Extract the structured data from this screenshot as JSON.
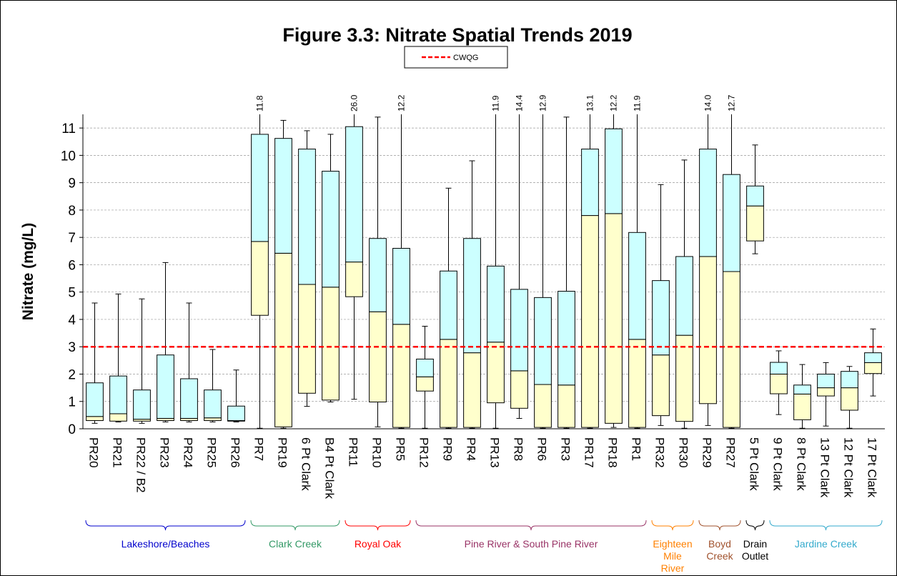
{
  "chart_data": {
    "type": "box",
    "title": "Figure 3.3: Nitrate Spatial Trends 2019",
    "y_label": "Nitrate (mg/L)",
    "ylim": [
      0,
      11.5
    ],
    "yticks": [
      0,
      1,
      2,
      3,
      4,
      5,
      6,
      7,
      8,
      9,
      10,
      11
    ],
    "grid": true,
    "reference": {
      "name": "CWQG",
      "value": 3,
      "color": "#ff0000"
    },
    "lower_color": "#ffffcc",
    "upper_color": "#ccffff",
    "categories": [
      "PR20",
      "PR21",
      "PR22 / B2",
      "PR23",
      "PR24",
      "PR25",
      "PR26",
      "PR7",
      "PR19",
      "6 Pt Clark",
      "B4 Pt Clark",
      "PR11",
      "PR10",
      "PR5",
      "PR12",
      "PR9",
      "PR4",
      "PR13",
      "PR8",
      "PR6",
      "PR3",
      "PR17",
      "PR18",
      "PR1",
      "PR32",
      "PR30",
      "PR29",
      "PR27",
      "5 Pt Clark",
      "9 Pt Clark",
      "8 Pt Clark",
      "13 Pt Clark",
      "12 Pt Clark",
      "17 Pt Clark"
    ],
    "min": [
      0.2,
      0.25,
      0.2,
      0.25,
      0.25,
      0.25,
      0.25,
      0.02,
      0.02,
      0.82,
      0.98,
      1.08,
      0.07,
      0.02,
      0.02,
      0.02,
      0.02,
      0.02,
      0.38,
      0.02,
      0.02,
      0.02,
      0.05,
      0.02,
      0.12,
      0.02,
      0.12,
      0.02,
      6.4,
      0.52,
      0.02,
      0.1,
      0.02,
      1.2
    ],
    "q1": [
      0.3,
      0.28,
      0.28,
      0.3,
      0.3,
      0.3,
      0.28,
      4.15,
      0.07,
      1.3,
      1.05,
      4.83,
      0.98,
      0.05,
      1.38,
      0.05,
      0.05,
      0.95,
      0.75,
      0.05,
      0.05,
      0.05,
      0.2,
      0.05,
      0.48,
      0.27,
      0.92,
      0.05,
      6.87,
      1.28,
      0.33,
      1.2,
      0.68,
      2.02
    ],
    "median": [
      0.45,
      0.55,
      0.35,
      0.38,
      0.38,
      0.4,
      0.3,
      6.85,
      6.42,
      5.28,
      5.18,
      6.1,
      4.28,
      3.82,
      1.9,
      3.27,
      2.78,
      3.17,
      2.12,
      1.62,
      1.6,
      7.8,
      7.87,
      3.27,
      2.7,
      3.42,
      6.3,
      5.75,
      8.15,
      2.0,
      1.27,
      1.5,
      1.5,
      2.42
    ],
    "q3": [
      1.68,
      1.93,
      1.42,
      2.7,
      1.83,
      1.42,
      0.83,
      10.77,
      10.62,
      10.23,
      9.42,
      11.05,
      6.96,
      6.6,
      2.55,
      5.77,
      6.96,
      5.95,
      5.1,
      4.8,
      5.03,
      10.23,
      10.97,
      7.18,
      5.42,
      6.3,
      10.23,
      9.3,
      8.88,
      2.43,
      1.6,
      2.0,
      2.1,
      2.78
    ],
    "max": [
      4.6,
      4.93,
      4.75,
      6.08,
      4.6,
      2.9,
      2.15,
      11.8,
      11.28,
      10.9,
      10.77,
      26.0,
      11.4,
      12.2,
      3.75,
      8.8,
      9.8,
      11.9,
      14.4,
      12.9,
      11.4,
      13.1,
      12.2,
      11.9,
      8.93,
      9.83,
      14.0,
      12.7,
      10.38,
      2.85,
      2.35,
      2.42,
      2.28,
      3.65
    ],
    "max_labels": [
      null,
      null,
      null,
      null,
      null,
      null,
      null,
      "11.8",
      null,
      null,
      null,
      "26.0",
      null,
      "12.2",
      null,
      null,
      null,
      "11.9",
      "14.4",
      "12.9",
      null,
      "13.1",
      "12.2",
      "11.9",
      null,
      null,
      "14.0",
      "12.7",
      null,
      null,
      null,
      null,
      null,
      null
    ],
    "groups": [
      {
        "lines": [
          "Lakeshore/Beaches"
        ],
        "start": 0,
        "end": 6,
        "color": "#0000cc"
      },
      {
        "lines": [
          "Clark Creek"
        ],
        "start": 7,
        "end": 10,
        "color": "#339966"
      },
      {
        "lines": [
          "Royal Oak"
        ],
        "start": 11,
        "end": 13,
        "color": "#ff0000"
      },
      {
        "lines": [
          "Pine River & South Pine River"
        ],
        "start": 14,
        "end": 23,
        "color": "#993366"
      },
      {
        "lines": [
          "Eighteen",
          "Mile",
          "River"
        ],
        "start": 24,
        "end": 25,
        "color": "#ff8000"
      },
      {
        "lines": [
          "Boyd",
          "Creek"
        ],
        "start": 26,
        "end": 27,
        "color": "#a0522d"
      },
      {
        "lines": [
          "Drain",
          "Outlet"
        ],
        "start": 28,
        "end": 28,
        "color": "#000000"
      },
      {
        "lines": [
          "Jardine Creek"
        ],
        "start": 29,
        "end": 33,
        "color": "#33aacc"
      }
    ]
  }
}
